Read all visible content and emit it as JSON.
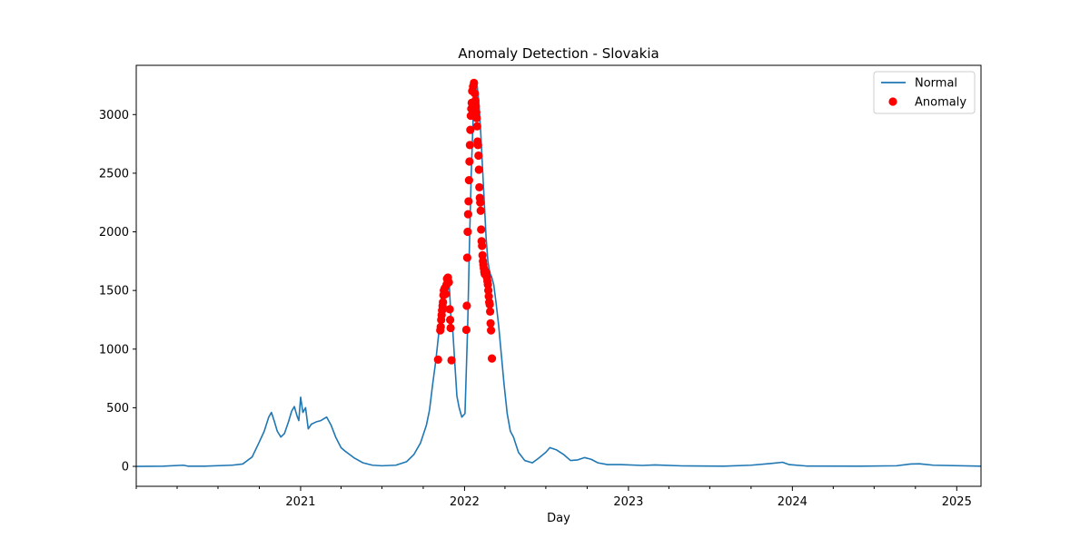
{
  "chart_data": {
    "type": "line",
    "title": "Anomaly Detection - Slovakia",
    "xlabel": "Day",
    "ylabel": "",
    "xlim": [
      "2020-01-01",
      "2025-02-24"
    ],
    "ylim": [
      -170,
      3420
    ],
    "x_ticks": [
      "2021",
      "2022",
      "2023",
      "2024",
      "2025"
    ],
    "y_ticks": [
      0,
      500,
      1000,
      1500,
      2000,
      2500,
      3000
    ],
    "grid": false,
    "legend": {
      "placement": "top-right",
      "entries": [
        "Normal",
        "Anomaly"
      ]
    },
    "colors": {
      "normal": "#1f77b4",
      "anomaly": "#ff0000"
    },
    "series": [
      {
        "name": "Normal",
        "kind": "line",
        "points": [
          [
            "2020-01-01",
            0
          ],
          [
            "2020-03-01",
            2
          ],
          [
            "2020-04-15",
            10
          ],
          [
            "2020-04-25",
            2
          ],
          [
            "2020-06-01",
            2
          ],
          [
            "2020-08-01",
            10
          ],
          [
            "2020-08-25",
            20
          ],
          [
            "2020-09-15",
            80
          ],
          [
            "2020-09-30",
            200
          ],
          [
            "2020-10-12",
            300
          ],
          [
            "2020-10-22",
            420
          ],
          [
            "2020-10-28",
            460
          ],
          [
            "2020-11-03",
            390
          ],
          [
            "2020-11-10",
            300
          ],
          [
            "2020-11-18",
            250
          ],
          [
            "2020-11-26",
            280
          ],
          [
            "2020-12-05",
            380
          ],
          [
            "2020-12-12",
            470
          ],
          [
            "2020-12-18",
            510
          ],
          [
            "2020-12-24",
            430
          ],
          [
            "2020-12-28",
            390
          ],
          [
            "2021-01-01",
            590
          ],
          [
            "2021-01-06",
            460
          ],
          [
            "2021-01-12",
            500
          ],
          [
            "2021-01-18",
            320
          ],
          [
            "2021-01-25",
            360
          ],
          [
            "2021-02-05",
            380
          ],
          [
            "2021-02-15",
            390
          ],
          [
            "2021-02-28",
            420
          ],
          [
            "2021-03-10",
            350
          ],
          [
            "2021-03-20",
            250
          ],
          [
            "2021-04-01",
            160
          ],
          [
            "2021-04-10",
            130
          ],
          [
            "2021-05-01",
            70
          ],
          [
            "2021-05-20",
            30
          ],
          [
            "2021-06-10",
            10
          ],
          [
            "2021-07-01",
            5
          ],
          [
            "2021-08-01",
            10
          ],
          [
            "2021-08-25",
            40
          ],
          [
            "2021-09-10",
            100
          ],
          [
            "2021-09-25",
            200
          ],
          [
            "2021-10-08",
            350
          ],
          [
            "2021-10-15",
            480
          ],
          [
            "2021-10-22",
            700
          ],
          [
            "2021-10-29",
            900
          ],
          [
            "2021-11-05",
            1150
          ],
          [
            "2021-11-10",
            1300
          ],
          [
            "2021-11-15",
            1450
          ],
          [
            "2021-11-20",
            1550
          ],
          [
            "2021-11-24",
            1600
          ],
          [
            "2021-11-28",
            1550
          ],
          [
            "2021-12-02",
            1250
          ],
          [
            "2021-12-06",
            1150
          ],
          [
            "2021-12-10",
            900
          ],
          [
            "2021-12-15",
            600
          ],
          [
            "2021-12-20",
            500
          ],
          [
            "2021-12-26",
            420
          ],
          [
            "2022-01-02",
            450
          ],
          [
            "2022-01-08",
            1200
          ],
          [
            "2022-01-12",
            1900
          ],
          [
            "2022-01-16",
            2500
          ],
          [
            "2022-01-20",
            2950
          ],
          [
            "2022-01-25",
            3200
          ],
          [
            "2022-01-29",
            3250
          ],
          [
            "2022-02-02",
            3100
          ],
          [
            "2022-02-06",
            2850
          ],
          [
            "2022-02-10",
            2550
          ],
          [
            "2022-02-14",
            2250
          ],
          [
            "2022-02-18",
            1950
          ],
          [
            "2022-02-22",
            1750
          ],
          [
            "2022-02-26",
            1650
          ],
          [
            "2022-03-02",
            1620
          ],
          [
            "2022-03-07",
            1550
          ],
          [
            "2022-03-12",
            1400
          ],
          [
            "2022-03-18",
            1200
          ],
          [
            "2022-03-24",
            950
          ],
          [
            "2022-03-30",
            700
          ],
          [
            "2022-04-06",
            450
          ],
          [
            "2022-04-13",
            300
          ],
          [
            "2022-04-20",
            250
          ],
          [
            "2022-05-01",
            120
          ],
          [
            "2022-05-15",
            50
          ],
          [
            "2022-06-01",
            30
          ],
          [
            "2022-06-15",
            70
          ],
          [
            "2022-07-01",
            120
          ],
          [
            "2022-07-10",
            160
          ],
          [
            "2022-07-25",
            140
          ],
          [
            "2022-08-10",
            100
          ],
          [
            "2022-08-25",
            50
          ],
          [
            "2022-09-10",
            55
          ],
          [
            "2022-09-25",
            75
          ],
          [
            "2022-10-10",
            60
          ],
          [
            "2022-10-25",
            30
          ],
          [
            "2022-11-15",
            15
          ],
          [
            "2022-12-15",
            15
          ],
          [
            "2023-02-01",
            8
          ],
          [
            "2023-03-01",
            12
          ],
          [
            "2023-05-01",
            4
          ],
          [
            "2023-08-01",
            2
          ],
          [
            "2023-10-01",
            10
          ],
          [
            "2023-11-15",
            25
          ],
          [
            "2023-12-10",
            35
          ],
          [
            "2023-12-25",
            15
          ],
          [
            "2024-02-01",
            3
          ],
          [
            "2024-06-01",
            2
          ],
          [
            "2024-08-20",
            5
          ],
          [
            "2024-09-20",
            20
          ],
          [
            "2024-10-10",
            22
          ],
          [
            "2024-11-10",
            10
          ],
          [
            "2025-02-24",
            2
          ]
        ]
      },
      {
        "name": "Anomaly",
        "kind": "scatter",
        "points": [
          [
            "2021-11-03",
            910
          ],
          [
            "2021-11-08",
            1160
          ],
          [
            "2021-11-09",
            1190
          ],
          [
            "2021-11-10",
            1250
          ],
          [
            "2021-11-11",
            1290
          ],
          [
            "2021-11-12",
            1330
          ],
          [
            "2021-11-13",
            1370
          ],
          [
            "2021-11-14",
            1400
          ],
          [
            "2021-11-15",
            1460
          ],
          [
            "2021-11-16",
            1500
          ],
          [
            "2021-11-18",
            1520
          ],
          [
            "2021-11-20",
            1470
          ],
          [
            "2021-11-22",
            1550
          ],
          [
            "2021-11-23",
            1600
          ],
          [
            "2021-11-25",
            1610
          ],
          [
            "2021-11-27",
            1570
          ],
          [
            "2021-11-29",
            1340
          ],
          [
            "2021-11-30",
            1250
          ],
          [
            "2021-12-01",
            1180
          ],
          [
            "2021-12-03",
            905
          ],
          [
            "2022-01-05",
            1165
          ],
          [
            "2022-01-06",
            1370
          ],
          [
            "2022-01-07",
            1780
          ],
          [
            "2022-01-08",
            2000
          ],
          [
            "2022-01-09",
            2150
          ],
          [
            "2022-01-10",
            2260
          ],
          [
            "2022-01-11",
            2440
          ],
          [
            "2022-01-12",
            2600
          ],
          [
            "2022-01-13",
            2740
          ],
          [
            "2022-01-14",
            2870
          ],
          [
            "2022-01-15",
            2990
          ],
          [
            "2022-01-16",
            3050
          ],
          [
            "2022-01-17",
            3100
          ],
          [
            "2022-01-18",
            3200
          ],
          [
            "2022-01-20",
            3240
          ],
          [
            "2022-01-22",
            3270
          ],
          [
            "2022-01-24",
            3180
          ],
          [
            "2022-01-25",
            3120
          ],
          [
            "2022-01-26",
            3070
          ],
          [
            "2022-01-27",
            3020
          ],
          [
            "2022-01-28",
            2970
          ],
          [
            "2022-01-29",
            2900
          ],
          [
            "2022-01-30",
            2770
          ],
          [
            "2022-01-31",
            2740
          ],
          [
            "2022-02-01",
            2650
          ],
          [
            "2022-02-02",
            2530
          ],
          [
            "2022-02-03",
            2380
          ],
          [
            "2022-02-04",
            2290
          ],
          [
            "2022-02-05",
            2250
          ],
          [
            "2022-02-06",
            2180
          ],
          [
            "2022-02-07",
            2020
          ],
          [
            "2022-02-08",
            1920
          ],
          [
            "2022-02-09",
            1880
          ],
          [
            "2022-02-10",
            1800
          ],
          [
            "2022-02-11",
            1750
          ],
          [
            "2022-02-12",
            1720
          ],
          [
            "2022-02-13",
            1690
          ],
          [
            "2022-02-14",
            1660
          ],
          [
            "2022-02-15",
            1640
          ],
          [
            "2022-02-17",
            1660
          ],
          [
            "2022-02-19",
            1650
          ],
          [
            "2022-02-20",
            1610
          ],
          [
            "2022-02-21",
            1580
          ],
          [
            "2022-02-22",
            1550
          ],
          [
            "2022-02-23",
            1500
          ],
          [
            "2022-02-24",
            1450
          ],
          [
            "2022-02-25",
            1400
          ],
          [
            "2022-02-26",
            1380
          ],
          [
            "2022-02-27",
            1320
          ],
          [
            "2022-02-28",
            1220
          ],
          [
            "2022-03-01",
            1160
          ],
          [
            "2022-03-03",
            920
          ]
        ]
      }
    ]
  }
}
